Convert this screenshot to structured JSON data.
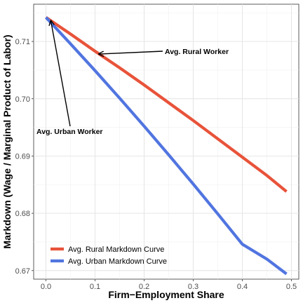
{
  "chart_data": {
    "type": "line",
    "xlabel": "Firm−Employment Share",
    "ylabel": "Markdown (Wage / Marginal Product of Labor)",
    "xlim": [
      -0.025,
      0.515
    ],
    "ylim": [
      0.6685,
      0.7165
    ],
    "x_ticks": [
      0.0,
      0.1,
      0.2,
      0.3,
      0.4,
      0.5
    ],
    "x_tick_labels": [
      "0.0",
      "0.1",
      "0.2",
      "0.3",
      "0.4",
      "0.5"
    ],
    "y_ticks": [
      0.67,
      0.68,
      0.69,
      0.7,
      0.71
    ],
    "y_tick_labels": [
      "0.67",
      "0.68",
      "0.69",
      "0.70",
      "0.71"
    ],
    "grid": true,
    "legend_position": "bottom-left",
    "series": [
      {
        "name": "Avg. Rural Markdown Curve",
        "color": "#E8533A",
        "x": [
          0.0,
          0.05,
          0.1,
          0.15,
          0.2,
          0.25,
          0.3,
          0.35,
          0.4,
          0.45,
          0.49
        ],
        "y": [
          0.7142,
          0.7113,
          0.7083,
          0.7054,
          0.7024,
          0.6993,
          0.6962,
          0.693,
          0.6898,
          0.6866,
          0.6838
        ]
      },
      {
        "name": "Avg. Urban Markdown Curve",
        "color": "#5175E0",
        "x": [
          0.0,
          0.05,
          0.1,
          0.15,
          0.2,
          0.25,
          0.3,
          0.35,
          0.4,
          0.45,
          0.49
        ],
        "y": [
          0.7142,
          0.7096,
          0.7049,
          0.7001,
          0.6952,
          0.6902,
          0.6851,
          0.6799,
          0.6746,
          0.672,
          0.6694
        ]
      }
    ],
    "annotations": [
      {
        "text": "Avg. Rural Worker",
        "arrow_to": {
          "x": 0.108,
          "y": 0.7078
        }
      },
      {
        "text": "Avg. Urban Worker",
        "arrow_to": {
          "x": 0.01,
          "y": 0.7136
        }
      }
    ]
  }
}
